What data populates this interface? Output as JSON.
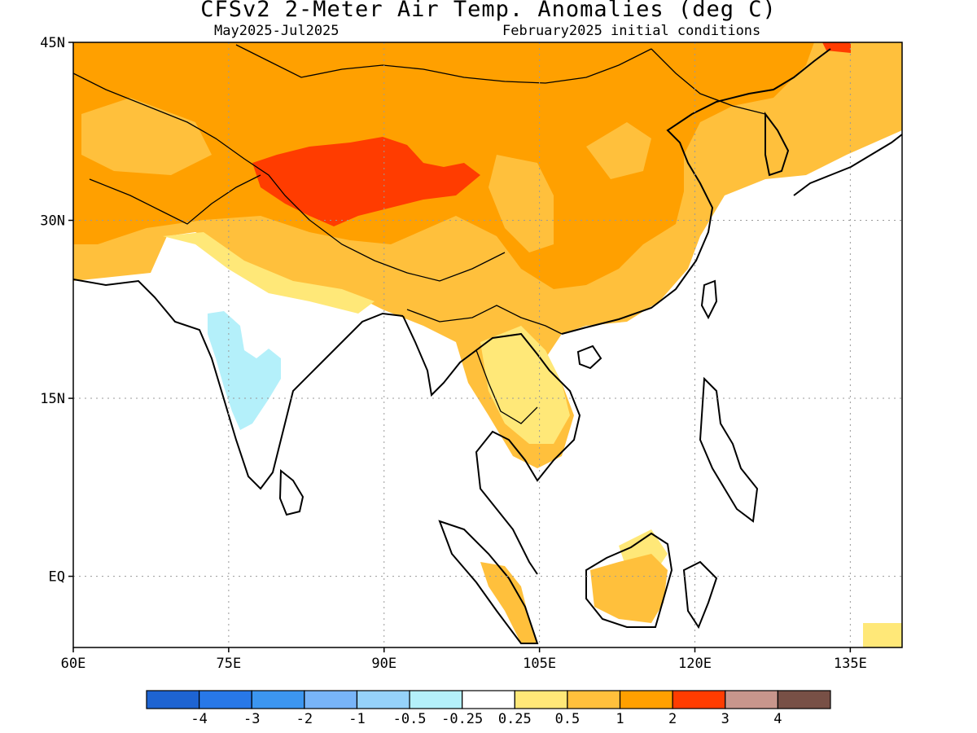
{
  "header": {
    "title": "CFSv2 2-Meter Air Temp. Anomalies (deg C)",
    "period": "May2025-Jul2025",
    "init": "February2025 initial conditions"
  },
  "map": {
    "lon_range": [
      60,
      140
    ],
    "lat_range": [
      -6,
      45
    ],
    "lat_ticks": [
      {
        "value": 45,
        "label": "45N"
      },
      {
        "value": 30,
        "label": "30N"
      },
      {
        "value": 15,
        "label": "15N"
      },
      {
        "value": 0,
        "label": "EQ"
      }
    ],
    "lon_ticks": [
      {
        "value": 60,
        "label": "60E"
      },
      {
        "value": 75,
        "label": "75E"
      },
      {
        "value": 90,
        "label": "90E"
      },
      {
        "value": 105,
        "label": "105E"
      },
      {
        "value": 120,
        "label": "120E"
      },
      {
        "value": 135,
        "label": "135E"
      }
    ],
    "grid": "dotted"
  },
  "colorbar": {
    "colors": [
      "#1e64d2",
      "#2878e8",
      "#3c96f0",
      "#78b4f8",
      "#96d2fa",
      "#b4f0fa",
      "#ffffff",
      "#ffe878",
      "#ffc03c",
      "#ffa000",
      "#ff3c00",
      "#c8968c",
      "#785046"
    ],
    "labels": [
      "-4",
      "-3",
      "-2",
      "-1",
      "-0.5",
      "-0.25",
      "0.25",
      "0.5",
      "1",
      "2",
      "3",
      "4"
    ]
  }
}
